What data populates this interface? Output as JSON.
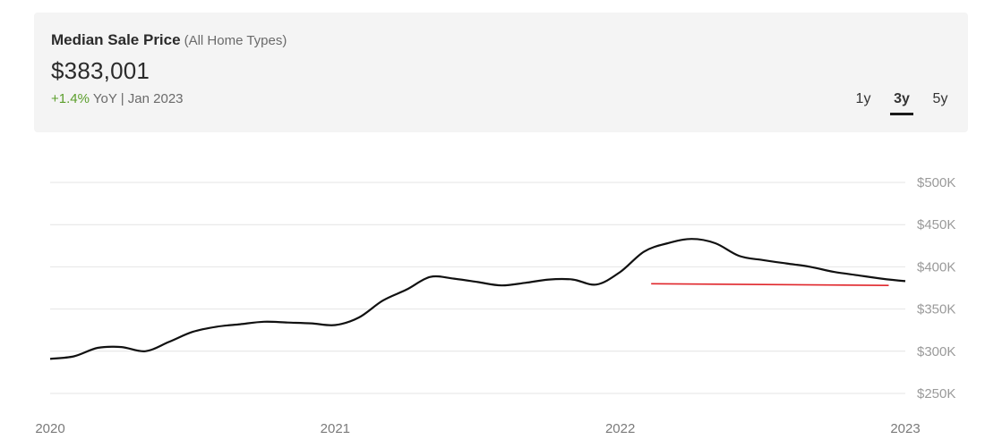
{
  "header": {
    "title": "Median Sale Price",
    "subtitle": "(All Home Types)",
    "price": "$383,001",
    "change_pct": "+1.4%",
    "change_suffix": " YoY | Jan 2023"
  },
  "range_tabs": [
    {
      "label": "1y",
      "active": false
    },
    {
      "label": "3y",
      "active": true
    },
    {
      "label": "5y",
      "active": false
    }
  ],
  "colors": {
    "series_line": "#111111",
    "reference_line": "#e0262b",
    "change_positive": "#5a9e2a",
    "grid": "#e4e4e4"
  },
  "chart_data": {
    "type": "line",
    "title": "",
    "xlabel": "",
    "ylabel": "",
    "x_ticks": [
      "2020",
      "2021",
      "2022",
      "2023"
    ],
    "y_ticks": [
      "$250K",
      "$300K",
      "$350K",
      "$400K",
      "$450K",
      "$500K"
    ],
    "y_tick_values": [
      250000,
      300000,
      350000,
      400000,
      450000,
      500000
    ],
    "ylim": [
      240000,
      500000
    ],
    "xlim": [
      "2020-01",
      "2023-01"
    ],
    "grid": true,
    "y_axis_side": "right",
    "legend": "none",
    "series": [
      {
        "x": [
          "2020-01",
          "2020-02",
          "2020-03",
          "2020-04",
          "2020-05",
          "2020-06",
          "2020-07",
          "2020-08",
          "2020-09",
          "2020-10",
          "2020-11",
          "2020-12",
          "2021-01",
          "2021-02",
          "2021-03",
          "2021-04",
          "2021-05",
          "2021-06",
          "2021-07",
          "2021-08",
          "2021-09",
          "2021-10",
          "2021-11",
          "2021-12",
          "2022-01",
          "2022-02",
          "2022-03",
          "2022-04",
          "2022-05",
          "2022-06",
          "2022-07",
          "2022-08",
          "2022-09",
          "2022-10",
          "2022-11",
          "2022-12",
          "2023-01"
        ],
        "y": [
          291000,
          294000,
          304000,
          305000,
          300000,
          311000,
          323000,
          329000,
          332000,
          335000,
          334000,
          333000,
          331000,
          340000,
          360000,
          373000,
          388000,
          386000,
          382000,
          378000,
          381000,
          385000,
          385000,
          379000,
          394000,
          418000,
          428000,
          433000,
          428000,
          413000,
          408000,
          404000,
          400000,
          394000,
          390000,
          386000,
          383000
        ]
      }
    ],
    "reference_line": {
      "x_start": "2022-02",
      "x_end": "2022-12",
      "y_start": 380000,
      "y_end": 378000
    }
  }
}
